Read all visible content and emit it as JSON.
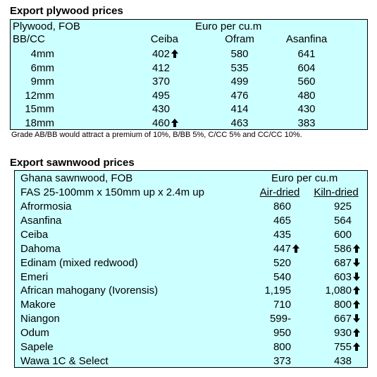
{
  "plywood": {
    "title": "Export plywood prices",
    "header_left_1": "Plywood, FOB",
    "header_left_2": "BB/CC",
    "unit": "Euro per cu.m",
    "columns": [
      "Ceiba",
      "Ofram",
      "Asanfina"
    ],
    "rows": [
      {
        "size": "4mm",
        "ceiba": "402",
        "ceiba_trend": "up",
        "ofram": "580",
        "asanfina": "641"
      },
      {
        "size": "6mm",
        "ceiba": "412",
        "ceiba_trend": "",
        "ofram": "535",
        "asanfina": "604"
      },
      {
        "size": "9mm",
        "ceiba": "370",
        "ceiba_trend": "",
        "ofram": "499",
        "asanfina": "560"
      },
      {
        "size": "12mm",
        "ceiba": "495",
        "ceiba_trend": "",
        "ofram": "476",
        "asanfina": "480"
      },
      {
        "size": "15mm",
        "ceiba": "430",
        "ceiba_trend": "",
        "ofram": "414",
        "asanfina": "430"
      },
      {
        "size": "18mm",
        "ceiba": "460",
        "ceiba_trend": "up",
        "ofram": "463",
        "asanfina": "383"
      }
    ],
    "note": "Grade AB/BB would attract a premium of 10%, B/BB 5%, C/CC 5% and CC/CC 10%."
  },
  "sawnwood": {
    "title": "Export sawnwood prices",
    "header_left_1": "Ghana sawnwood, FOB",
    "header_left_2": "FAS 25-100mm x 150mm up x 2.4m up",
    "unit": "Euro per cu.m",
    "columns": [
      "Air-dried",
      "Kiln-dried"
    ],
    "rows": [
      {
        "species": "Afrormosia",
        "air": "860",
        "air_trend": "",
        "kiln": "925",
        "kiln_trend": ""
      },
      {
        "species": "Asanfina",
        "air": "465",
        "air_trend": "",
        "kiln": "564",
        "kiln_trend": ""
      },
      {
        "species": "Ceiba",
        "air": "435",
        "air_trend": "",
        "kiln": "600",
        "kiln_trend": ""
      },
      {
        "species": "Dahoma",
        "air": "447",
        "air_trend": "up",
        "kiln": "586",
        "kiln_trend": "up"
      },
      {
        "species": "Edinam (mixed redwood)",
        "air": "520",
        "air_trend": "",
        "kiln": "687",
        "kiln_trend": "down"
      },
      {
        "species": "Emeri",
        "air": "540",
        "air_trend": "",
        "kiln": "603",
        "kiln_trend": "down"
      },
      {
        "species": "African mahogany (Ivorensis)",
        "air": "1,195",
        "air_trend": "",
        "kiln": "1,080",
        "kiln_trend": "up"
      },
      {
        "species": "Makore",
        "air": "710",
        "air_trend": "",
        "kiln": "800",
        "kiln_trend": "up"
      },
      {
        "species": "Niangon",
        "air": "599-",
        "air_trend": "",
        "kiln": "667",
        "kiln_trend": "down"
      },
      {
        "species": "Odum",
        "air": "950",
        "air_trend": "",
        "kiln": "930",
        "kiln_trend": "up"
      },
      {
        "species": "Sapele",
        "air": "800",
        "air_trend": "",
        "kiln": "755",
        "kiln_trend": "up"
      },
      {
        "species": "Wawa 1C & Select",
        "air": "373",
        "air_trend": "",
        "kiln": "438",
        "kiln_trend": ""
      }
    ]
  }
}
